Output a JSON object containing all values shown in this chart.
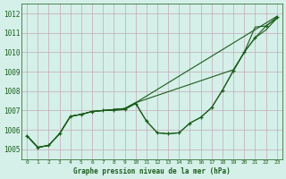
{
  "title": "Graphe pression niveau de la mer (hPa)",
  "bg_color": "#d4f0e8",
  "grid_color": "#b8d4c8",
  "line_color": "#1a5c1a",
  "xlim": [
    -0.5,
    23.5
  ],
  "ylim": [
    1004.5,
    1012.5
  ],
  "yticks": [
    1005,
    1006,
    1007,
    1008,
    1009,
    1010,
    1011,
    1012
  ],
  "xticks": [
    0,
    1,
    2,
    3,
    4,
    5,
    6,
    7,
    8,
    9,
    10,
    11,
    12,
    13,
    14,
    15,
    16,
    17,
    18,
    19,
    20,
    21,
    22,
    23
  ],
  "series": [
    {
      "x": [
        0,
        1,
        2,
        3,
        4,
        5,
        6,
        7,
        8,
        9,
        10,
        11,
        12,
        13,
        14,
        15,
        16,
        17,
        18,
        19,
        20,
        21,
        22,
        23
      ],
      "y": [
        1005.7,
        1005.1,
        1005.2,
        1005.8,
        1006.7,
        1006.8,
        1006.95,
        1007.0,
        1007.0,
        1007.05,
        1007.35,
        1006.45,
        1005.85,
        1005.8,
        1005.85,
        1006.35,
        1006.65,
        1007.15,
        1008.05,
        1009.05,
        1010.0,
        1010.75,
        1011.35,
        1011.8
      ],
      "marker": true
    },
    {
      "x": [
        0,
        1,
        2,
        3,
        4,
        5,
        6,
        7,
        8,
        9,
        10,
        23
      ],
      "y": [
        1005.7,
        1005.1,
        1005.2,
        1005.8,
        1006.7,
        1006.8,
        1006.95,
        1007.0,
        1007.05,
        1007.1,
        1007.4,
        1011.85
      ],
      "marker": false
    },
    {
      "x": [
        0,
        1,
        2,
        3,
        4,
        5,
        6,
        7,
        8,
        9,
        10,
        19,
        20,
        21,
        22,
        23
      ],
      "y": [
        1005.7,
        1005.1,
        1005.2,
        1005.8,
        1006.7,
        1006.8,
        1006.95,
        1007.0,
        1007.05,
        1007.1,
        1007.4,
        1009.1,
        1010.0,
        1011.3,
        1011.35,
        1011.75
      ],
      "marker": false
    },
    {
      "x": [
        0,
        1,
        2,
        3,
        4,
        5,
        6,
        7,
        8,
        9,
        10,
        11,
        12,
        13,
        14,
        15,
        16,
        17,
        18,
        19,
        20,
        21,
        22,
        23
      ],
      "y": [
        1005.7,
        1005.1,
        1005.2,
        1005.8,
        1006.7,
        1006.8,
        1006.95,
        1007.0,
        1007.05,
        1007.1,
        1007.4,
        1006.45,
        1005.85,
        1005.8,
        1005.85,
        1006.35,
        1006.65,
        1007.15,
        1008.05,
        1009.05,
        1010.0,
        1010.75,
        1011.15,
        1011.75
      ],
      "marker": false
    }
  ]
}
